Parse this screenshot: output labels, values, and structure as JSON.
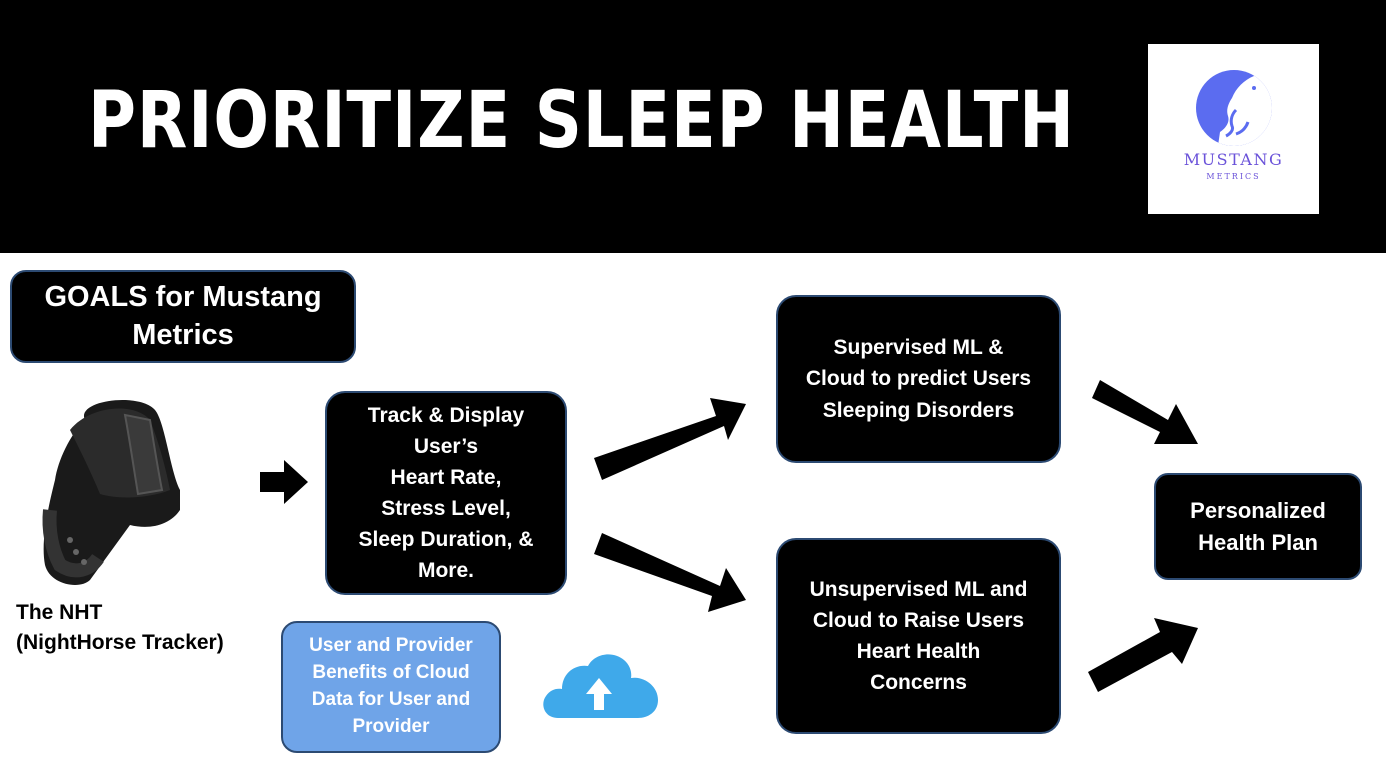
{
  "header": {
    "title": "PRIORITIZE SLEEP HEALTH"
  },
  "logo": {
    "name": "MUSTANG",
    "sub": "METRICS",
    "icon": "mustang-horse-icon",
    "color": "#5b6cf0"
  },
  "goals": {
    "text": "GOALS for Mustang Metrics"
  },
  "device": {
    "label_line1": "The NHT",
    "label_line2": "(NightHorse Tracker)",
    "icon": "fitness-band-icon"
  },
  "track_box": {
    "lines": [
      "Track & Display",
      "User’s",
      "Heart Rate,",
      "Stress Level,",
      "Sleep Duration, &",
      "More."
    ]
  },
  "supervised_box": {
    "lines": [
      "Supervised ML &",
      "Cloud to predict Users",
      "Sleeping Disorders"
    ]
  },
  "unsupervised_box": {
    "lines": [
      "Unsupervised ML and",
      "Cloud to Raise Users",
      "Heart Health",
      "Concerns"
    ]
  },
  "plan_box": {
    "lines": [
      "Personalized",
      "Health Plan"
    ]
  },
  "cloud_box": {
    "lines": [
      "User and Provider",
      "Benefits of Cloud",
      "Data for User and",
      "Provider"
    ],
    "color": "#6fa4e8"
  },
  "cloud_icon": {
    "name": "cloud-upload-icon",
    "color": "#3fa9ea"
  }
}
